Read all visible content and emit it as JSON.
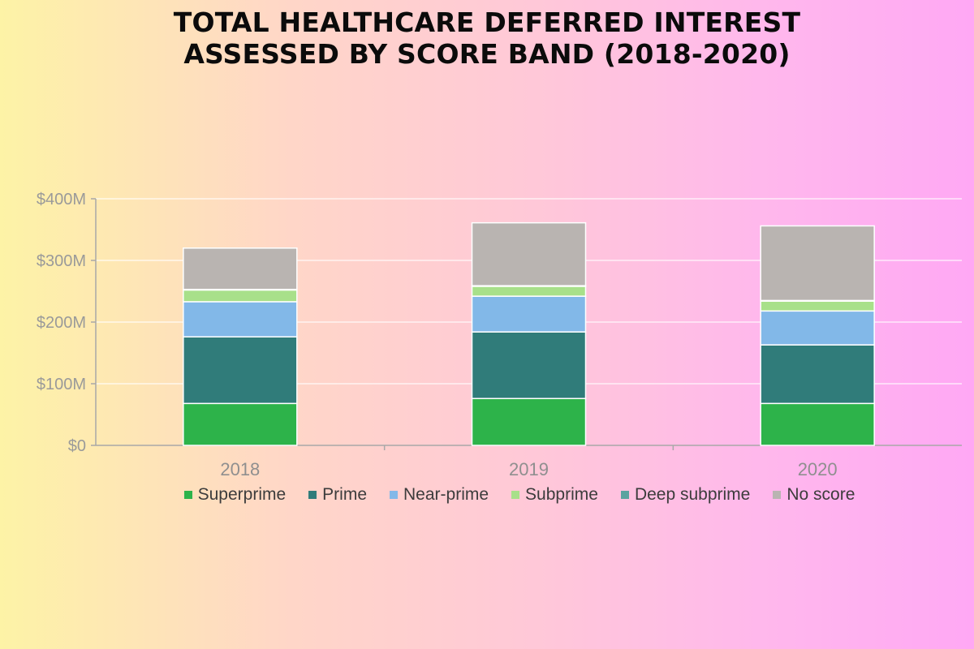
{
  "title": {
    "line1": "TOTAL HEALTHCARE DEFERRED INTEREST",
    "line2": "ASSESSED BY SCORE BAND (2018-2020)"
  },
  "chart_data": {
    "type": "bar",
    "stacked": true,
    "title": "TOTAL HEALTHCARE DEFERRED INTEREST ASSESSED BY SCORE BAND (2018-2020)",
    "categories": [
      "2018",
      "2019",
      "2020"
    ],
    "ylim": [
      0,
      400
    ],
    "yticks": [
      0,
      100,
      200,
      300,
      400
    ],
    "ytick_labels": [
      "$0",
      "$100M",
      "$200M",
      "$300M",
      "$400M"
    ],
    "xlabel": "",
    "ylabel": "",
    "grid": true,
    "legend_position": "bottom",
    "series": [
      {
        "name": "Superprime",
        "color": "#2db34a",
        "values": [
          68,
          76,
          68
        ]
      },
      {
        "name": "Prime",
        "color": "#307c7a",
        "values": [
          108,
          108,
          95
        ]
      },
      {
        "name": "Near-prime",
        "color": "#82b8e8",
        "values": [
          57,
          58,
          55
        ]
      },
      {
        "name": "Subprime",
        "color": "#a8e08a",
        "values": [
          19,
          16,
          16
        ]
      },
      {
        "name": "Deep subprime",
        "color": "#5aa3a0",
        "values": [
          1,
          1,
          1
        ]
      },
      {
        "name": "No score",
        "color": "#b9b4b1",
        "values": [
          67,
          102,
          121
        ]
      }
    ]
  }
}
